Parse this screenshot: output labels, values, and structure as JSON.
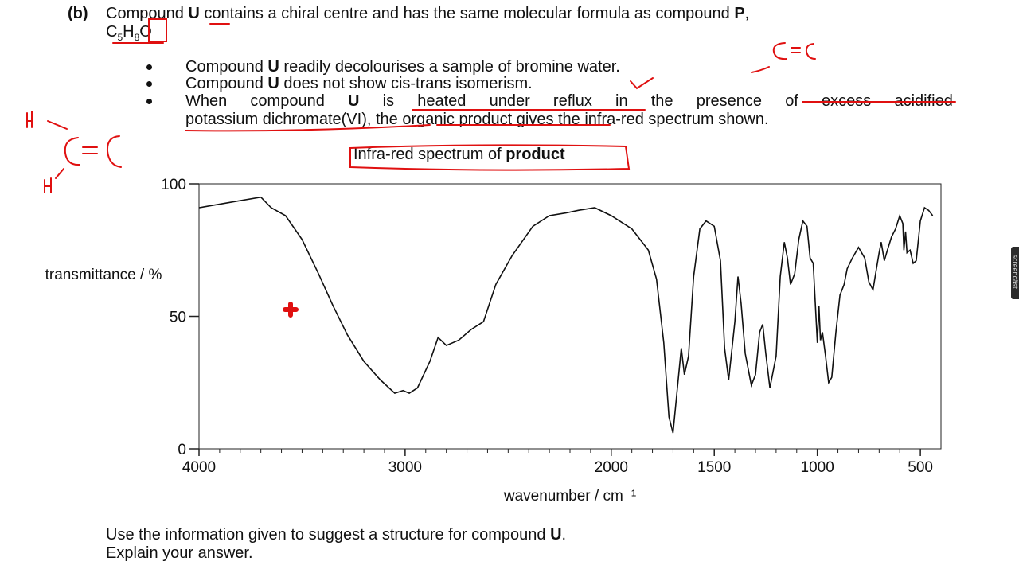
{
  "question": {
    "part_label": "(b)",
    "intro_before_u": "Compound ",
    "u": "U",
    "intro_middle": " contains a chiral centre and has the same molecular formula as compound ",
    "p": "P",
    "intro_end": ",",
    "formula_c": "C",
    "formula_c_sub": "5",
    "formula_h": "H",
    "formula_h_sub": "8",
    "formula_o": "O",
    "bullets": [
      {
        "pre": "Compound ",
        "bold": "U",
        "post": " readily decolourises a sample of bromine water."
      },
      {
        "pre": "Compound ",
        "bold": "U",
        "post": " does not show cis-trans isomerism."
      },
      {
        "line1_words": [
          "When",
          "compound",
          "U",
          "is",
          "heated",
          "under",
          "reflux",
          "in",
          "the",
          "presence",
          "of",
          "excess",
          "acidified"
        ],
        "line2": "potassium dichromate(VI), the organic product gives the infra-red spectrum shown."
      }
    ],
    "prompt_line1_pre": "Use the information given to suggest a structure for compound ",
    "prompt_line1_bold": "U",
    "prompt_line1_post": ".",
    "prompt_line2": "Explain your answer."
  },
  "chart_title_pre": "Infra-red spectrum of ",
  "chart_title_bold": "product",
  "handwriting": {
    "top_right": "C=C",
    "left_h_top": "H",
    "left_cc": "C=C",
    "left_h_bottom": "H"
  },
  "screencast_tag": "screencäst",
  "chart_data": {
    "type": "line",
    "title": "Infra-red spectrum of product",
    "xlabel": "wavenumber / cm⁻¹",
    "ylabel": "transmittance / %",
    "xlim": [
      4000,
      400
    ],
    "ylim": [
      0,
      100
    ],
    "x_ticks": [
      4000,
      3000,
      2000,
      1500,
      1000,
      500
    ],
    "y_ticks": [
      0,
      50,
      100
    ],
    "grid": false,
    "series": [
      {
        "points": [
          [
            4000,
            91
          ],
          [
            3850,
            93
          ],
          [
            3700,
            95
          ],
          [
            3650,
            91
          ],
          [
            3580,
            88
          ],
          [
            3500,
            79
          ],
          [
            3420,
            66
          ],
          [
            3350,
            54
          ],
          [
            3280,
            43
          ],
          [
            3200,
            33
          ],
          [
            3120,
            26
          ],
          [
            3050,
            21
          ],
          [
            3010,
            22
          ],
          [
            2980,
            21
          ],
          [
            2940,
            23
          ],
          [
            2880,
            33
          ],
          [
            2840,
            42
          ],
          [
            2800,
            39
          ],
          [
            2740,
            41
          ],
          [
            2680,
            45
          ],
          [
            2620,
            48
          ],
          [
            2560,
            62
          ],
          [
            2480,
            73
          ],
          [
            2380,
            84
          ],
          [
            2300,
            88
          ],
          [
            2220,
            89
          ],
          [
            2160,
            90
          ],
          [
            2080,
            91
          ],
          [
            2000,
            88
          ],
          [
            1900,
            83
          ],
          [
            1820,
            75
          ],
          [
            1780,
            64
          ],
          [
            1745,
            40
          ],
          [
            1720,
            12
          ],
          [
            1700,
            6
          ],
          [
            1680,
            22
          ],
          [
            1660,
            38
          ],
          [
            1645,
            28
          ],
          [
            1625,
            35
          ],
          [
            1600,
            65
          ],
          [
            1570,
            83
          ],
          [
            1540,
            86
          ],
          [
            1500,
            84
          ],
          [
            1470,
            71
          ],
          [
            1450,
            38
          ],
          [
            1430,
            26
          ],
          [
            1400,
            48
          ],
          [
            1385,
            65
          ],
          [
            1370,
            55
          ],
          [
            1350,
            36
          ],
          [
            1320,
            24
          ],
          [
            1300,
            28
          ],
          [
            1280,
            44
          ],
          [
            1265,
            47
          ],
          [
            1250,
            36
          ],
          [
            1230,
            23
          ],
          [
            1200,
            35
          ],
          [
            1180,
            65
          ],
          [
            1160,
            78
          ],
          [
            1145,
            72
          ],
          [
            1130,
            62
          ],
          [
            1110,
            66
          ],
          [
            1090,
            79
          ],
          [
            1070,
            86
          ],
          [
            1050,
            84
          ],
          [
            1035,
            72
          ],
          [
            1020,
            70
          ],
          [
            1010,
            55
          ],
          [
            1000,
            40
          ],
          [
            992,
            54
          ],
          [
            985,
            41
          ],
          [
            975,
            44
          ],
          [
            960,
            35
          ],
          [
            945,
            25
          ],
          [
            930,
            27
          ],
          [
            910,
            44
          ],
          [
            890,
            58
          ],
          [
            870,
            62
          ],
          [
            855,
            68
          ],
          [
            830,
            72
          ],
          [
            800,
            76
          ],
          [
            770,
            72
          ],
          [
            750,
            63
          ],
          [
            730,
            60
          ],
          [
            715,
            67
          ],
          [
            700,
            74
          ],
          [
            690,
            78
          ],
          [
            675,
            71
          ],
          [
            660,
            75
          ],
          [
            640,
            80
          ],
          [
            620,
            83
          ],
          [
            600,
            88
          ],
          [
            585,
            85
          ],
          [
            580,
            75
          ],
          [
            572,
            82
          ],
          [
            565,
            74
          ],
          [
            550,
            75
          ],
          [
            535,
            70
          ],
          [
            520,
            71
          ],
          [
            500,
            86
          ],
          [
            480,
            91
          ],
          [
            460,
            90
          ],
          [
            440,
            88
          ]
        ]
      }
    ]
  }
}
